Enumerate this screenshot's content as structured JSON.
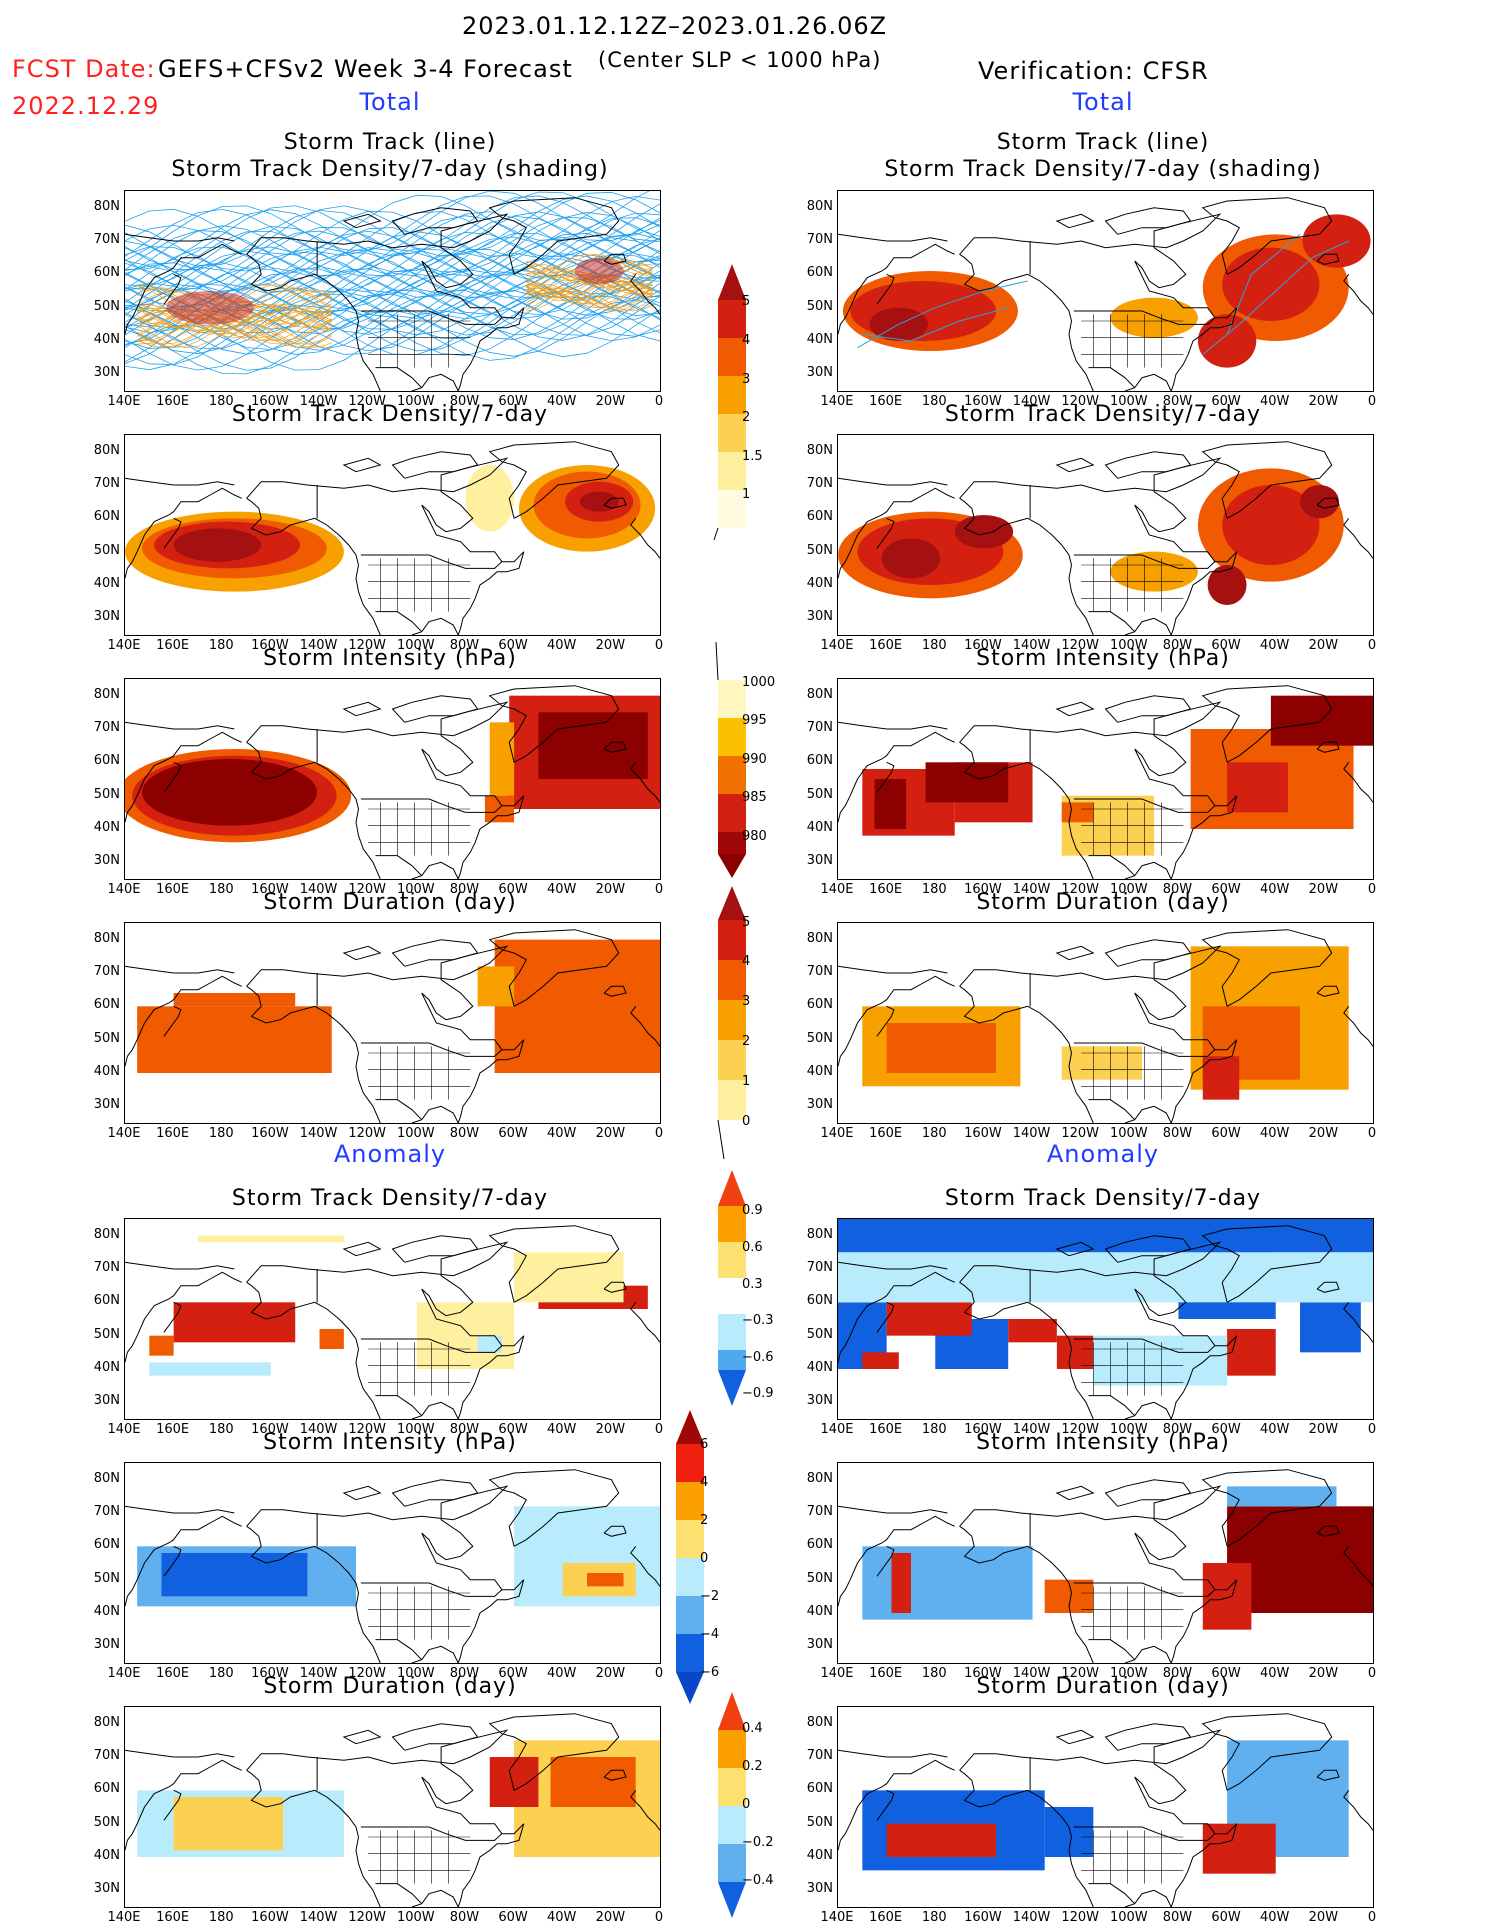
{
  "header": {
    "date_range": "2023.01.12.12Z–2023.01.26.06Z",
    "fcst_label": "FCST Date:",
    "fcst_model": "GEFS+CFSv2 Week 3-4 Forecast",
    "fcst_date": "2022.12.29",
    "criteria": "(Center SLP < 1000 hPa)",
    "verification": "Verification: CFSR"
  },
  "sections": {
    "total": "Total",
    "anomaly": "Anomaly"
  },
  "panel_titles": {
    "track_line": "Storm Track (line)",
    "track_shading": "Storm Track Density/7-day (shading)",
    "density": "Storm Track Density/7-day",
    "intensity": "Storm Intensity (hPa)",
    "duration": "Storm Duration (day)"
  },
  "axes": {
    "lat_labels": [
      "80N",
      "70N",
      "60N",
      "50N",
      "40N",
      "30N"
    ],
    "lon_labels": [
      "140E",
      "160E",
      "180",
      "160W",
      "140W",
      "120W",
      "100W",
      "80W",
      "60W",
      "40W",
      "20W",
      "0"
    ]
  },
  "colorbars": {
    "density": [
      "5",
      "4",
      "3",
      "2",
      "1.5",
      "1"
    ],
    "intensity": [
      "1000",
      "995",
      "990",
      "985",
      "980"
    ],
    "duration": [
      "5",
      "4",
      "3",
      "2",
      "1",
      "0"
    ],
    "density_anom": [
      "0.9",
      "0.6",
      "0.3",
      "−0.3",
      "−0.6",
      "−0.9"
    ],
    "intensity_anom": [
      "6",
      "4",
      "2",
      "0",
      "−2",
      "−4",
      "−6"
    ],
    "duration_anom": [
      "0.4",
      "0.2",
      "0",
      "−0.2",
      "−0.4"
    ]
  },
  "colors": {
    "accent_red": "#ff2020",
    "accent_blue": "#1f3cff",
    "track_line": "#1ea0f0",
    "track_orange": "#f0a020"
  }
}
